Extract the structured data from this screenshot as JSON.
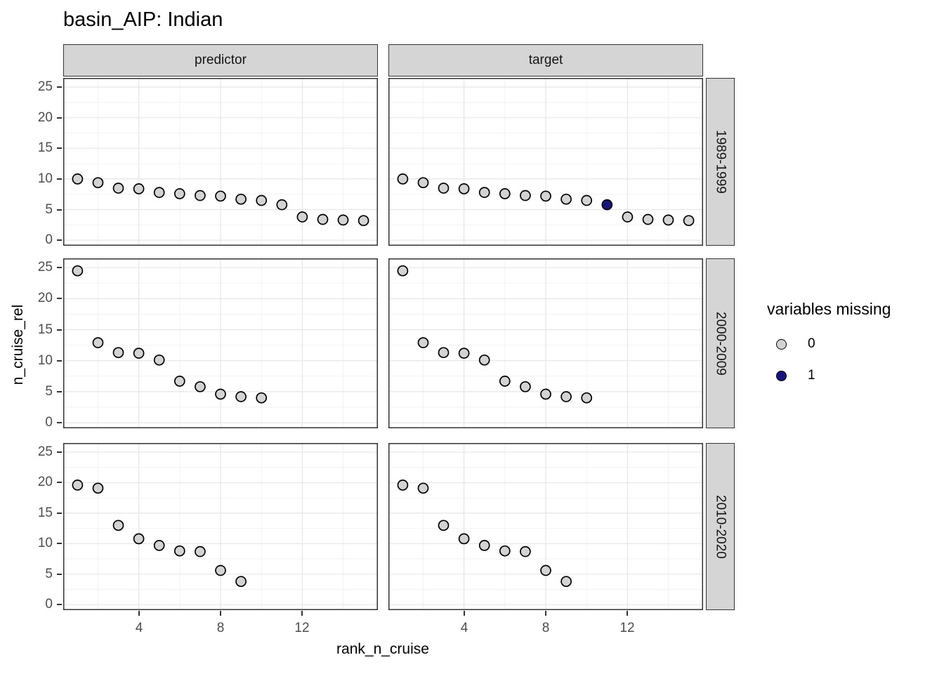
{
  "title": "basin_AIP: Indian",
  "facets": {
    "columns": [
      "predictor",
      "target"
    ],
    "rows": [
      "1989-1999",
      "2000-2009",
      "2010-2020"
    ]
  },
  "axes": {
    "x_label": "rank_n_cruise",
    "y_label": "n_cruise_rel",
    "x_ticks": [
      4,
      8,
      12
    ],
    "y_ticks": [
      0,
      5,
      10,
      15,
      20,
      25
    ],
    "x_range": [
      0.3,
      15.7
    ],
    "y_range": [
      -0.9,
      26.5
    ],
    "grid": "major-and-minor"
  },
  "legend": {
    "title": "variables missing",
    "position": "right",
    "items": [
      {
        "label": "0",
        "color": "#d3d3d3"
      },
      {
        "label": "1",
        "color": "#15157d"
      }
    ]
  },
  "colors": {
    "point_fill_0": "#d3d3d3",
    "point_fill_1": "#15157d",
    "point_stroke": "#000000",
    "panel_border": "#333333",
    "panel_bg": "#ffffff",
    "grid_major": "#e6e6e6",
    "grid_minor": "#f2f2f2",
    "strip_fill": "#d5d5d5",
    "tick_text": "#4d4d4d"
  },
  "chart_data": {
    "type": "scatter",
    "x_variable": "rank_n_cruise",
    "y_variable": "n_cruise_rel",
    "color_variable": "variables missing",
    "panels": [
      {
        "column": "predictor",
        "row": "1989-1999",
        "points": [
          [
            1,
            10.0,
            0
          ],
          [
            2,
            9.4,
            0
          ],
          [
            3,
            8.5,
            0
          ],
          [
            4,
            8.4,
            0
          ],
          [
            5,
            7.8,
            0
          ],
          [
            6,
            7.6,
            0
          ],
          [
            7,
            7.3,
            0
          ],
          [
            8,
            7.2,
            0
          ],
          [
            9,
            6.7,
            0
          ],
          [
            10,
            6.5,
            0
          ],
          [
            11,
            5.8,
            0
          ],
          [
            12,
            3.8,
            0
          ],
          [
            13,
            3.4,
            0
          ],
          [
            14,
            3.3,
            0
          ],
          [
            15,
            3.2,
            0
          ]
        ]
      },
      {
        "column": "target",
        "row": "1989-1999",
        "points": [
          [
            1,
            10.0,
            0
          ],
          [
            2,
            9.4,
            0
          ],
          [
            3,
            8.5,
            0
          ],
          [
            4,
            8.4,
            0
          ],
          [
            5,
            7.8,
            0
          ],
          [
            6,
            7.6,
            0
          ],
          [
            7,
            7.3,
            0
          ],
          [
            8,
            7.2,
            0
          ],
          [
            9,
            6.7,
            0
          ],
          [
            10,
            6.5,
            0
          ],
          [
            11,
            5.8,
            1
          ],
          [
            12,
            3.8,
            0
          ],
          [
            13,
            3.4,
            0
          ],
          [
            14,
            3.3,
            0
          ],
          [
            15,
            3.2,
            0
          ]
        ]
      },
      {
        "column": "predictor",
        "row": "2000-2009",
        "points": [
          [
            1,
            24.5,
            0
          ],
          [
            2,
            12.9,
            0
          ],
          [
            3,
            11.3,
            0
          ],
          [
            4,
            11.2,
            0
          ],
          [
            5,
            10.1,
            0
          ],
          [
            6,
            6.7,
            0
          ],
          [
            7,
            5.8,
            0
          ],
          [
            8,
            4.6,
            0
          ],
          [
            9,
            4.2,
            0
          ],
          [
            10,
            4.0,
            0
          ]
        ]
      },
      {
        "column": "target",
        "row": "2000-2009",
        "points": [
          [
            1,
            24.5,
            0
          ],
          [
            2,
            12.9,
            0
          ],
          [
            3,
            11.3,
            0
          ],
          [
            4,
            11.2,
            0
          ],
          [
            5,
            10.1,
            0
          ],
          [
            6,
            6.7,
            0
          ],
          [
            7,
            5.8,
            0
          ],
          [
            8,
            4.6,
            0
          ],
          [
            9,
            4.2,
            0
          ],
          [
            10,
            4.0,
            0
          ]
        ]
      },
      {
        "column": "predictor",
        "row": "2010-2020",
        "points": [
          [
            1,
            19.6,
            0
          ],
          [
            2,
            19.1,
            0
          ],
          [
            3,
            13.0,
            0
          ],
          [
            4,
            10.8,
            0
          ],
          [
            5,
            9.7,
            0
          ],
          [
            6,
            8.8,
            0
          ],
          [
            7,
            8.7,
            0
          ],
          [
            8,
            5.6,
            0
          ],
          [
            9,
            3.8,
            0
          ]
        ]
      },
      {
        "column": "target",
        "row": "2010-2020",
        "points": [
          [
            1,
            19.6,
            0
          ],
          [
            2,
            19.1,
            0
          ],
          [
            3,
            13.0,
            0
          ],
          [
            4,
            10.8,
            0
          ],
          [
            5,
            9.7,
            0
          ],
          [
            6,
            8.8,
            0
          ],
          [
            7,
            8.7,
            0
          ],
          [
            8,
            5.6,
            0
          ],
          [
            9,
            3.8,
            0
          ]
        ]
      }
    ]
  }
}
